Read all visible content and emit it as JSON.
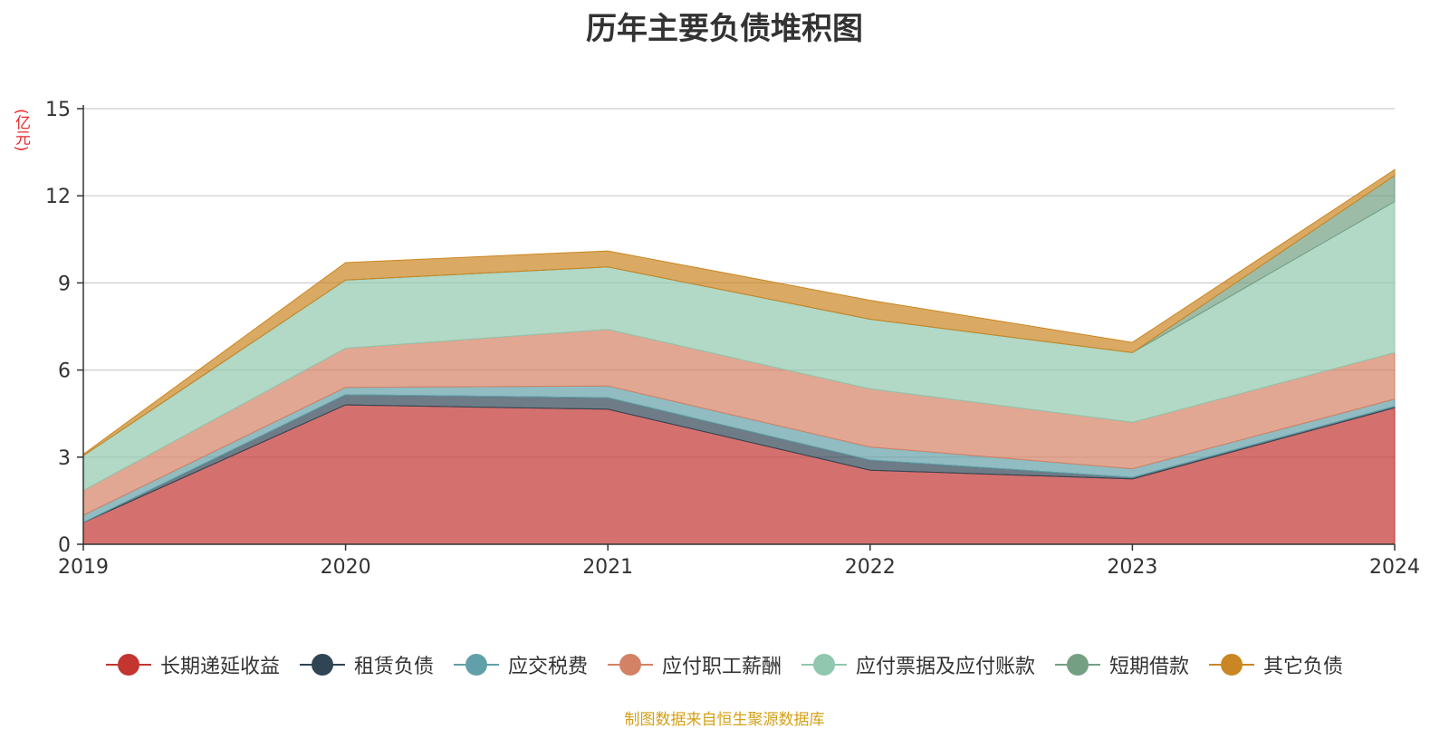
{
  "chart_data": {
    "type": "area",
    "stacked": true,
    "title": "历年主要负债堆积图",
    "ylabel": "(亿元)",
    "xlabel": "",
    "x": [
      "2019",
      "2020",
      "2021",
      "2022",
      "2023",
      "2024"
    ],
    "ylim": [
      0,
      15
    ],
    "yticks": [
      "0",
      "3",
      "6",
      "9",
      "12",
      "15"
    ],
    "grid": true,
    "legend_position": "bottom",
    "series": [
      {
        "name": "长期递延收益",
        "color": "#c23531",
        "values": [
          0.75,
          4.8,
          4.65,
          2.55,
          2.25,
          4.7
        ]
      },
      {
        "name": "租赁负债",
        "color": "#2f4554",
        "values": [
          0.0,
          0.35,
          0.4,
          0.35,
          0.05,
          0.05
        ]
      },
      {
        "name": "应交税费",
        "color": "#61a0a8",
        "values": [
          0.25,
          0.25,
          0.4,
          0.45,
          0.3,
          0.25
        ]
      },
      {
        "name": "应付职工薪酬",
        "color": "#d48265",
        "values": [
          0.85,
          1.35,
          1.95,
          2.0,
          1.6,
          1.6
        ]
      },
      {
        "name": "应付票据及应付账款",
        "color": "#91c7ae",
        "values": [
          1.2,
          2.35,
          2.15,
          2.4,
          2.4,
          5.2
        ]
      },
      {
        "name": "短期借款",
        "color": "#749f83",
        "values": [
          0.0,
          0.0,
          0.0,
          0.0,
          0.0,
          0.9
        ]
      },
      {
        "name": "其它负债",
        "color": "#ca8622",
        "values": [
          0.05,
          0.6,
          0.55,
          0.65,
          0.35,
          0.2
        ]
      }
    ],
    "source_note": "制图数据来自恒生聚源数据库"
  }
}
